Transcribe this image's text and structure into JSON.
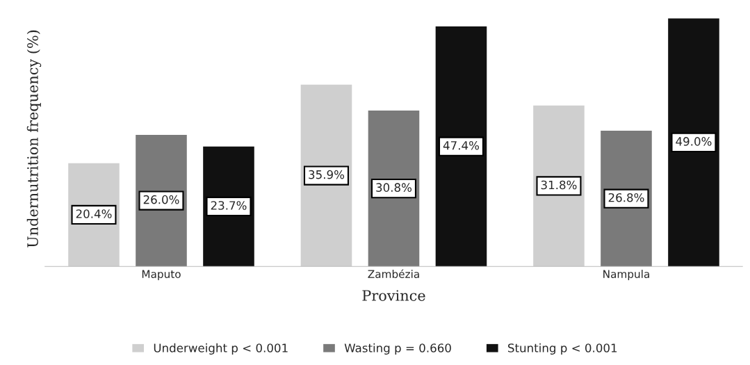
{
  "chart_data": {
    "type": "bar",
    "xlabel": "Province",
    "ylabel": "Undernutrition frequency (%)",
    "categories": [
      "Maputo",
      "Zambézia",
      "Nampula"
    ],
    "series": [
      {
        "name": "Underweight p < 0.001",
        "color": "#cfcfcf",
        "values": [
          20.4,
          35.9,
          31.8
        ],
        "value_labels": [
          "20.4%",
          "35.9%",
          "31.8%"
        ]
      },
      {
        "name": "Wasting p = 0.660",
        "color": "#7a7a7a",
        "values": [
          26.0,
          30.8,
          26.8
        ],
        "value_labels": [
          "26.0%",
          "30.8%",
          "26.8%"
        ]
      },
      {
        "name": "Stunting p < 0.001",
        "color": "#111111",
        "values": [
          23.7,
          47.4,
          49.0
        ],
        "value_labels": [
          "23.7%",
          "47.4%",
          "49.0%"
        ]
      }
    ],
    "legend": "bottom"
  }
}
